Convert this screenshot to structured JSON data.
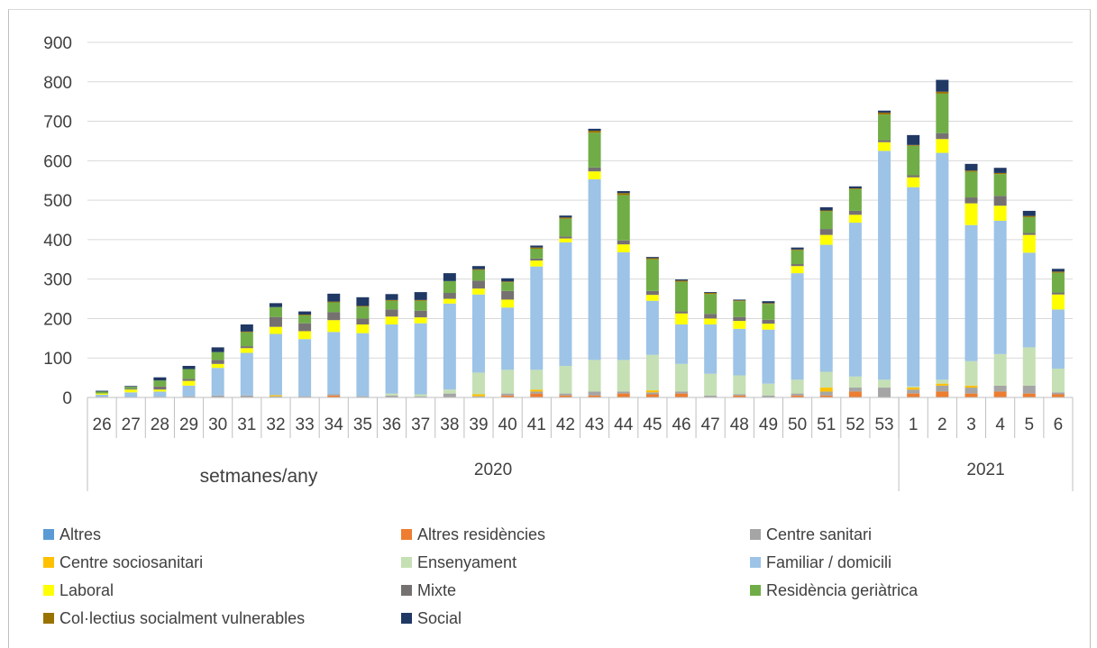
{
  "header": {
    "caption": ""
  },
  "colors": {
    "Altres": "#5b9bd5",
    "Altres residències": "#ed7d31",
    "Centre sanitari": "#a5a5a5",
    "Centre sociosanitari": "#ffc000",
    "Ensenyament": "#c5e0b4",
    "Familiar / domicili": "#9dc3e6",
    "Laboral": "#ffff00",
    "Mixte": "#767171",
    "Residència geriàtrica": "#70ad47",
    "Col·lectius socialment vulnerables": "#997300",
    "Social": "#203864"
  },
  "chart_data": {
    "type": "bar",
    "stacked": true,
    "categories": [
      "26",
      "27",
      "28",
      "29",
      "30",
      "31",
      "32",
      "33",
      "34",
      "35",
      "36",
      "37",
      "38",
      "39",
      "40",
      "41",
      "42",
      "43",
      "44",
      "45",
      "46",
      "47",
      "48",
      "49",
      "50",
      "51",
      "52",
      "53",
      "1",
      "2",
      "3",
      "4",
      "5",
      "6"
    ],
    "year_groups": [
      {
        "label": "2020",
        "from": 0,
        "to": 27
      },
      {
        "label": "2021",
        "from": 28,
        "to": 33
      }
    ],
    "xlabel": "setmanes/any",
    "ylim": [
      0,
      900
    ],
    "yticks": [
      0,
      100,
      200,
      300,
      400,
      500,
      600,
      700,
      800,
      900
    ],
    "grid": true,
    "legend_position": "bottom",
    "series": [
      {
        "name": "Altres",
        "values": [
          0,
          0,
          0,
          0,
          0,
          0,
          0,
          0,
          0,
          0,
          0,
          0,
          0,
          0,
          0,
          0,
          0,
          0,
          0,
          0,
          0,
          0,
          0,
          0,
          0,
          0,
          0,
          0,
          0,
          0,
          0,
          0,
          0,
          0
        ]
      },
      {
        "name": "Altres residències",
        "values": [
          0,
          0,
          0,
          0,
          0,
          0,
          0,
          0,
          5,
          0,
          0,
          0,
          0,
          0,
          5,
          10,
          5,
          5,
          10,
          8,
          10,
          0,
          5,
          0,
          5,
          5,
          15,
          0,
          10,
          15,
          10,
          15,
          10,
          8
        ]
      },
      {
        "name": "Centre sanitari",
        "values": [
          2,
          1,
          2,
          3,
          5,
          5,
          3,
          3,
          3,
          3,
          5,
          3,
          10,
          3,
          5,
          5,
          5,
          10,
          5,
          5,
          5,
          5,
          3,
          5,
          5,
          10,
          10,
          25,
          10,
          15,
          15,
          15,
          20,
          5
        ]
      },
      {
        "name": "Centre sociosanitari",
        "values": [
          0,
          0,
          0,
          0,
          0,
          0,
          3,
          0,
          0,
          0,
          0,
          0,
          0,
          5,
          0,
          5,
          0,
          0,
          0,
          5,
          0,
          0,
          0,
          0,
          0,
          10,
          0,
          0,
          5,
          5,
          5,
          0,
          0,
          0
        ]
      },
      {
        "name": "Ensenyament",
        "values": [
          0,
          0,
          0,
          0,
          0,
          0,
          0,
          0,
          0,
          0,
          5,
          5,
          10,
          55,
          60,
          50,
          70,
          80,
          80,
          90,
          70,
          55,
          48,
          30,
          35,
          40,
          28,
          20,
          3,
          10,
          62,
          80,
          97,
          60
        ]
      },
      {
        "name": "Familiar / domicili",
        "values": [
          5,
          12,
          13,
          27,
          70,
          108,
          155,
          145,
          158,
          160,
          175,
          180,
          218,
          198,
          158,
          262,
          313,
          458,
          273,
          137,
          100,
          125,
          118,
          137,
          270,
          322,
          390,
          580,
          505,
          575,
          345,
          338,
          240,
          150
        ]
      },
      {
        "name": "Laboral",
        "values": [
          3,
          7,
          5,
          12,
          10,
          12,
          18,
          20,
          30,
          22,
          20,
          15,
          12,
          15,
          20,
          15,
          10,
          20,
          20,
          15,
          28,
          15,
          20,
          15,
          18,
          25,
          20,
          22,
          25,
          35,
          55,
          38,
          45,
          38
        ]
      },
      {
        "name": "Mixte",
        "values": [
          0,
          2,
          8,
          5,
          10,
          5,
          25,
          20,
          20,
          15,
          18,
          17,
          15,
          20,
          22,
          5,
          5,
          10,
          10,
          10,
          5,
          12,
          10,
          10,
          5,
          15,
          10,
          5,
          5,
          15,
          15,
          25,
          5,
          5
        ]
      },
      {
        "name": "Residència geriàtrica",
        "values": [
          5,
          5,
          15,
          25,
          20,
          35,
          25,
          20,
          25,
          30,
          22,
          25,
          30,
          27,
          22,
          25,
          45,
          88,
          115,
          80,
          75,
          50,
          40,
          40,
          35,
          45,
          55,
          65,
          75,
          100,
          65,
          55,
          40,
          50
        ]
      },
      {
        "name": "Col·lectius socialment vulnerables",
        "values": [
          0,
          0,
          0,
          0,
          0,
          2,
          0,
          2,
          2,
          2,
          2,
          2,
          0,
          2,
          2,
          3,
          3,
          5,
          5,
          3,
          3,
          3,
          2,
          2,
          2,
          2,
          2,
          5,
          2,
          5,
          3,
          3,
          3,
          3
        ]
      },
      {
        "name": "Social",
        "values": [
          2,
          2,
          8,
          8,
          12,
          18,
          10,
          8,
          20,
          22,
          15,
          20,
          20,
          8,
          8,
          5,
          5,
          5,
          5,
          3,
          3,
          2,
          2,
          5,
          5,
          8,
          5,
          5,
          25,
          30,
          17,
          13,
          13,
          7
        ]
      }
    ]
  }
}
